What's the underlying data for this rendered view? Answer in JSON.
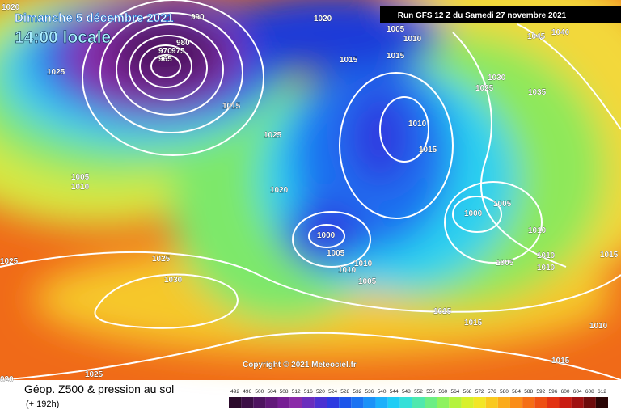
{
  "header": {
    "date": "Dimanche 5 décembre 2021",
    "time": "14:00 locale",
    "run": "Run GFS 12 Z du Samedi 27 novembre 2021"
  },
  "copyright": "Copyright © 2021 Meteociel.fr",
  "footer": {
    "title": "Géop. Z500 & pression au sol",
    "lead": "(+ 192h)"
  },
  "pressure_labels": [
    "1020",
    "990",
    "1020",
    "980",
    "975",
    "970",
    "965",
    "1025",
    "1005",
    "1010",
    "1025",
    "1020",
    "1000",
    "1005",
    "1010",
    "1010",
    "1005",
    "1025",
    "1030",
    "1025",
    "1025",
    "020",
    "1015",
    "1015",
    "1005",
    "1010",
    "1045",
    "1040",
    "1030",
    "1025",
    "1035",
    "1010",
    "1015",
    "1005",
    "1000",
    "1010",
    "1005",
    "1010",
    "1010",
    "1015",
    "1015",
    "1015",
    "1010",
    "1015",
    "1015"
  ],
  "scale": {
    "values": [
      492,
      496,
      500,
      504,
      508,
      512,
      516,
      520,
      524,
      528,
      532,
      536,
      540,
      544,
      548,
      552,
      556,
      560,
      564,
      568,
      572,
      576,
      580,
      584,
      588,
      592,
      596,
      600,
      604,
      608,
      612
    ],
    "colors": [
      "#2b0a2b",
      "#3c0f46",
      "#4e1460",
      "#62197a",
      "#761e94",
      "#8a2aa8",
      "#6a2dbd",
      "#4b31d2",
      "#2d3ae0",
      "#1c55ea",
      "#1b73f2",
      "#1b92f8",
      "#1cb0fb",
      "#1fcdf5",
      "#34e0d8",
      "#4fe8ae",
      "#6cee84",
      "#8ef25e",
      "#b4f33e",
      "#d8f02b",
      "#f2e626",
      "#f9c91f",
      "#fbab1b",
      "#fa8d18",
      "#f56e15",
      "#ee5013",
      "#e23212",
      "#c91c12",
      "#a01212",
      "#6e0c0c",
      "#2a0505"
    ]
  }
}
